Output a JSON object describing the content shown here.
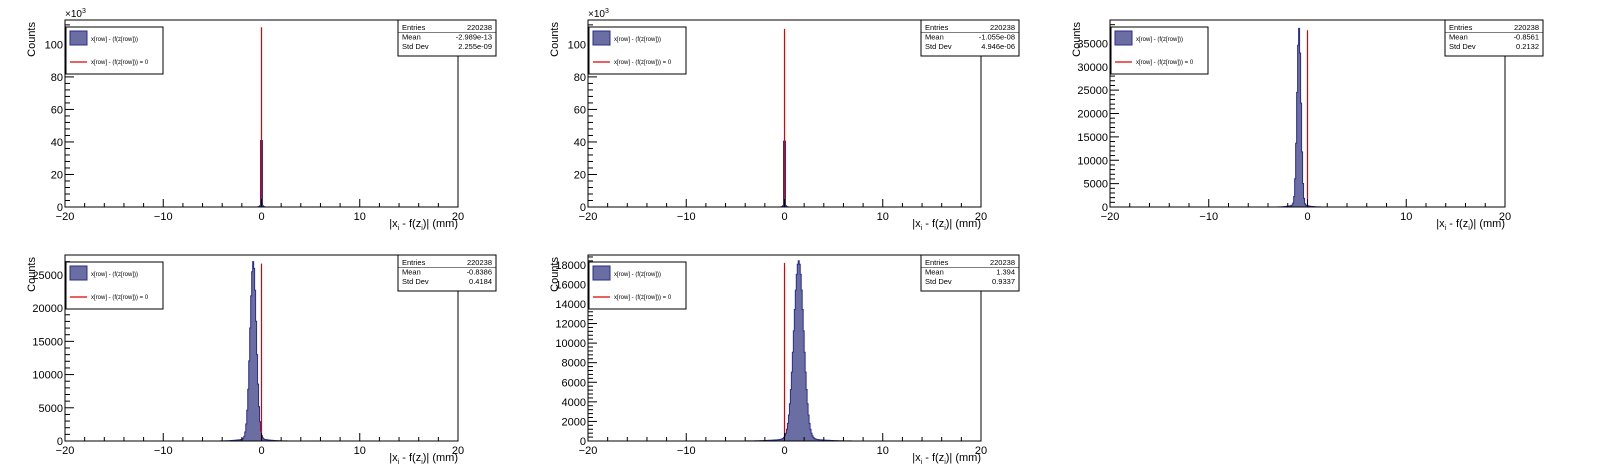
{
  "chart_data": [
    {
      "type": "bar",
      "subtype": "histogram",
      "exponent_label": "10",
      "exponent_power": "3",
      "xlim": [
        -20,
        20
      ],
      "ylim": [
        0,
        115
      ],
      "xticks": [
        "-20",
        "-10",
        "0",
        "10",
        "20"
      ],
      "yticks": [
        "0",
        "20",
        "40",
        "60",
        "80",
        "100"
      ],
      "xlabel": "|x_i - f(z_i)| (mm)",
      "ylabel": "Counts",
      "peak_center": 0.0,
      "peak_sigma": 0.02,
      "peak_value": 110,
      "ref_line_x": 0,
      "legend": {
        "hist": "x[row] - (f(z[row]))",
        "line": "x[row] - (f(z[row])) = 0"
      },
      "stats": {
        "entries_label": "Entries",
        "entries": "220238",
        "mean_label": "Mean",
        "mean": "-2.989e-13",
        "std_label": "Std Dev",
        "std": "2.255e-09"
      }
    },
    {
      "type": "bar",
      "subtype": "histogram",
      "exponent_label": "10",
      "exponent_power": "3",
      "xlim": [
        -20,
        20
      ],
      "ylim": [
        0,
        115
      ],
      "xticks": [
        "-20",
        "-10",
        "0",
        "10",
        "20"
      ],
      "yticks": [
        "0",
        "20",
        "40",
        "60",
        "80",
        "100"
      ],
      "xlabel": "|x_i - f(z_i)| (mm)",
      "ylabel": "Counts",
      "peak_center": 0.0,
      "peak_sigma": 0.02,
      "peak_value": 109,
      "ref_line_x": 0,
      "legend": {
        "hist": "x[row] - (f(z[row]))",
        "line": "x[row] - (f(z[row])) = 0"
      },
      "stats": {
        "entries_label": "Entries",
        "entries": "220238",
        "mean_label": "Mean",
        "mean": "-1.055e-08",
        "std_label": "Std Dev",
        "std": "4.946e-06"
      }
    },
    {
      "type": "bar",
      "subtype": "histogram",
      "xlim": [
        -20,
        20
      ],
      "ylim": [
        0,
        40000
      ],
      "xticks": [
        "-20",
        "-10",
        "0",
        "10",
        "20"
      ],
      "yticks": [
        "0",
        "5000",
        "10000",
        "15000",
        "20000",
        "25000",
        "30000",
        "35000"
      ],
      "xlabel": "|x_i - f(z_i)| (mm)",
      "ylabel": "Counts",
      "peak_center": -0.86,
      "peak_sigma": 0.2,
      "peak_value": 37800,
      "ref_line_x": 0,
      "legend": {
        "hist": "x[row] - (f(z[row]))",
        "line": "x[row] - (f(z[row])) = 0"
      },
      "stats": {
        "entries_label": "Entries",
        "entries": "220238",
        "mean_label": "Mean",
        "mean": "-0.8561",
        "std_label": "Std Dev",
        "std": "0.2132"
      }
    },
    {
      "type": "bar",
      "subtype": "histogram",
      "xlim": [
        -20,
        20
      ],
      "ylim": [
        0,
        28000
      ],
      "xticks": [
        "-20",
        "-10",
        "0",
        "10",
        "20"
      ],
      "yticks": [
        "0",
        "5000",
        "10000",
        "15000",
        "20000",
        "25000"
      ],
      "xlabel": "|x_i - f(z_i)| (mm)",
      "ylabel": "Counts",
      "peak_center": -0.84,
      "peak_sigma": 0.32,
      "peak_value": 26700,
      "ref_line_x": 0,
      "legend": {
        "hist": "x[row] - (f(z[row]))",
        "line": "x[row] - (f(z[row])) = 0"
      },
      "stats": {
        "entries_label": "Entries",
        "entries": "220238",
        "mean_label": "Mean",
        "mean": "-0.8386",
        "std_label": "Std Dev",
        "std": "0.4184"
      }
    },
    {
      "type": "bar",
      "subtype": "histogram",
      "xlim": [
        -20,
        20
      ],
      "ylim": [
        0,
        19000
      ],
      "xticks": [
        "-20",
        "-10",
        "0",
        "10",
        "20"
      ],
      "yticks": [
        "0",
        "2000",
        "4000",
        "6000",
        "8000",
        "10000",
        "12000",
        "14000",
        "16000",
        "18000"
      ],
      "xlabel": "|x_i - f(z_i)| (mm)",
      "ylabel": "Counts",
      "peak_center": 1.45,
      "peak_sigma": 0.5,
      "peak_value": 18200,
      "ref_line_x": 0,
      "legend": {
        "hist": "x[row] - (f(z[row]))",
        "line": "x[row] - (f(z[row])) = 0"
      },
      "stats": {
        "entries_label": "Entries",
        "entries": "220238",
        "mean_label": "Mean",
        "mean": "1.394",
        "std_label": "Std Dev",
        "std": "0.9337"
      }
    }
  ],
  "colors": {
    "hist_fill": "#6b6ea3",
    "hist_line": "#2a2d8f",
    "ref_line": "#e00000"
  }
}
